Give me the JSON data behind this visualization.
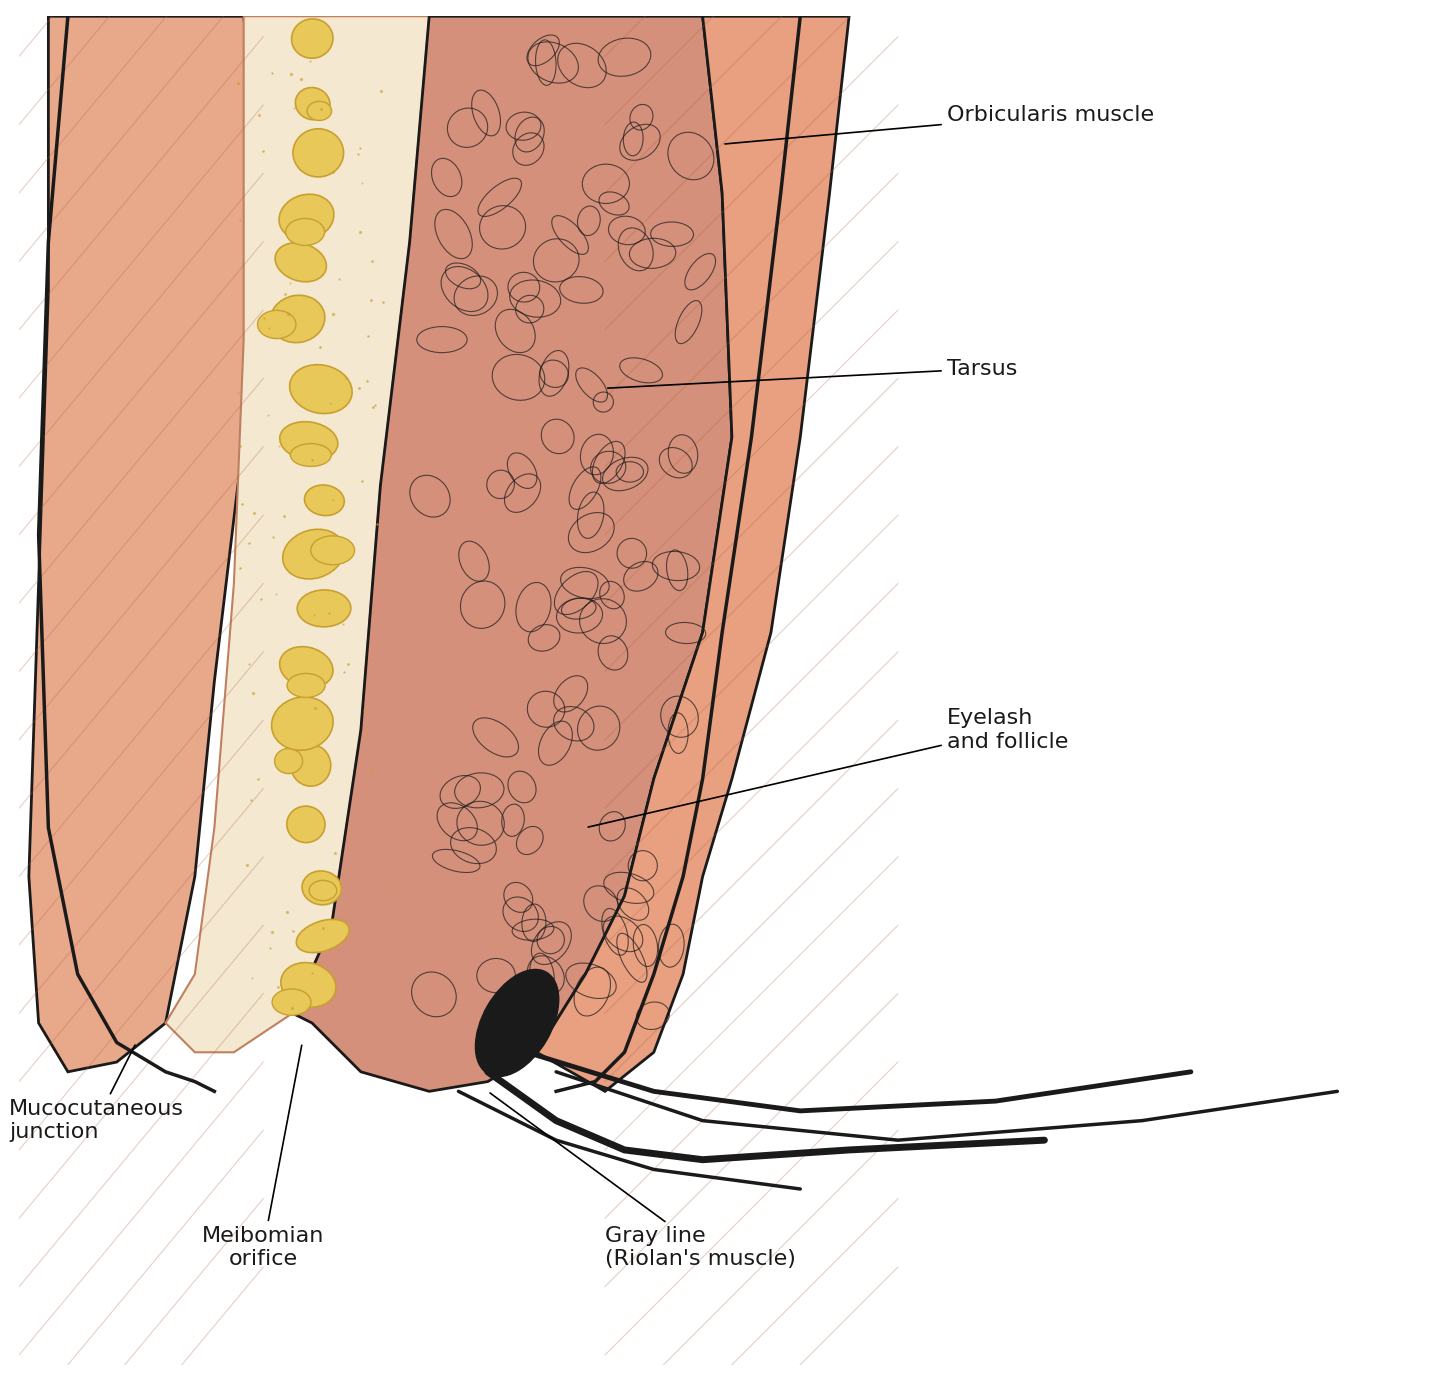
{
  "background_color": "#ffffff",
  "figure_size": [
    14.49,
    13.81
  ],
  "dpi": 100,
  "labels": {
    "orbicularis_muscle": "Orbicularis muscle",
    "tarsus": "Tarsus",
    "eyelash_follicle": "Eyelash\nand follicle",
    "mucocutaneous": "Mucocutaneous\njunction",
    "meibomian": "Meibomian\norifice",
    "gray_line": "Gray line\n(Riolan's muscle)"
  },
  "colors": {
    "skin_outer": "#e8a090",
    "skin_inner": "#f5c4b0",
    "tarsus_fill": "#d4887a",
    "tarsus_texture": "#c07060",
    "meibomian_fill": "#f5d090",
    "meibomian_gland": "#e8c060",
    "white_space": "#f8e8d8",
    "outline": "#1a1a1a",
    "eyelash": "#1a1a1a",
    "annotation_line": "#1a1a1a",
    "text_color": "#1a1a1a"
  },
  "font_sizes": {
    "label": 16
  }
}
